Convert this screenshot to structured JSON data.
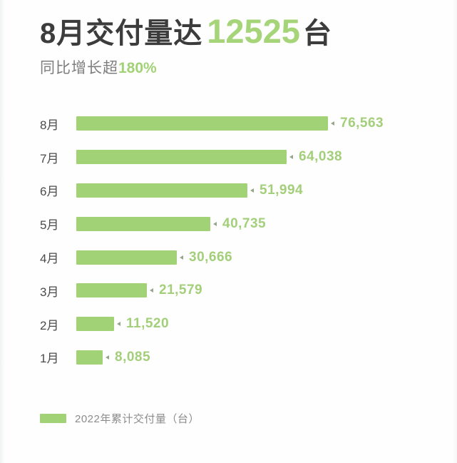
{
  "header": {
    "title_prefix": "8月交付量达",
    "title_highlight": "12525",
    "title_suffix": "台",
    "subtitle_prefix": "同比增长超",
    "subtitle_highlight": "180%"
  },
  "chart_data": {
    "type": "bar",
    "orientation": "horizontal",
    "title": "8月交付量达 12525 台",
    "subtitle": "同比增长超180%",
    "categories": [
      "8月",
      "7月",
      "6月",
      "5月",
      "4月",
      "3月",
      "2月",
      "1月"
    ],
    "values": [
      76563,
      64038,
      51994,
      40735,
      30666,
      21579,
      11520,
      8085
    ],
    "value_labels": [
      "76,563",
      "64,038",
      "51,994",
      "40,735",
      "30,666",
      "21,579",
      "11,520",
      "8,085"
    ],
    "xlim": [
      0,
      76563
    ],
    "grid": false,
    "legend_position": "bottom-left",
    "legend_entries": [
      "2022年累计交付量（台）"
    ],
    "bar_color": "#a2d276"
  },
  "legend": {
    "label": "2022年累计交付量（台）"
  },
  "colors": {
    "accent_green": "#a2d276",
    "value_text_green": "#a4cf7a",
    "title_dark": "#3c3c3c",
    "subtitle_gray": "#7e7e7e",
    "marker_gray_green": "#97a58b",
    "background": "#fefefe"
  }
}
